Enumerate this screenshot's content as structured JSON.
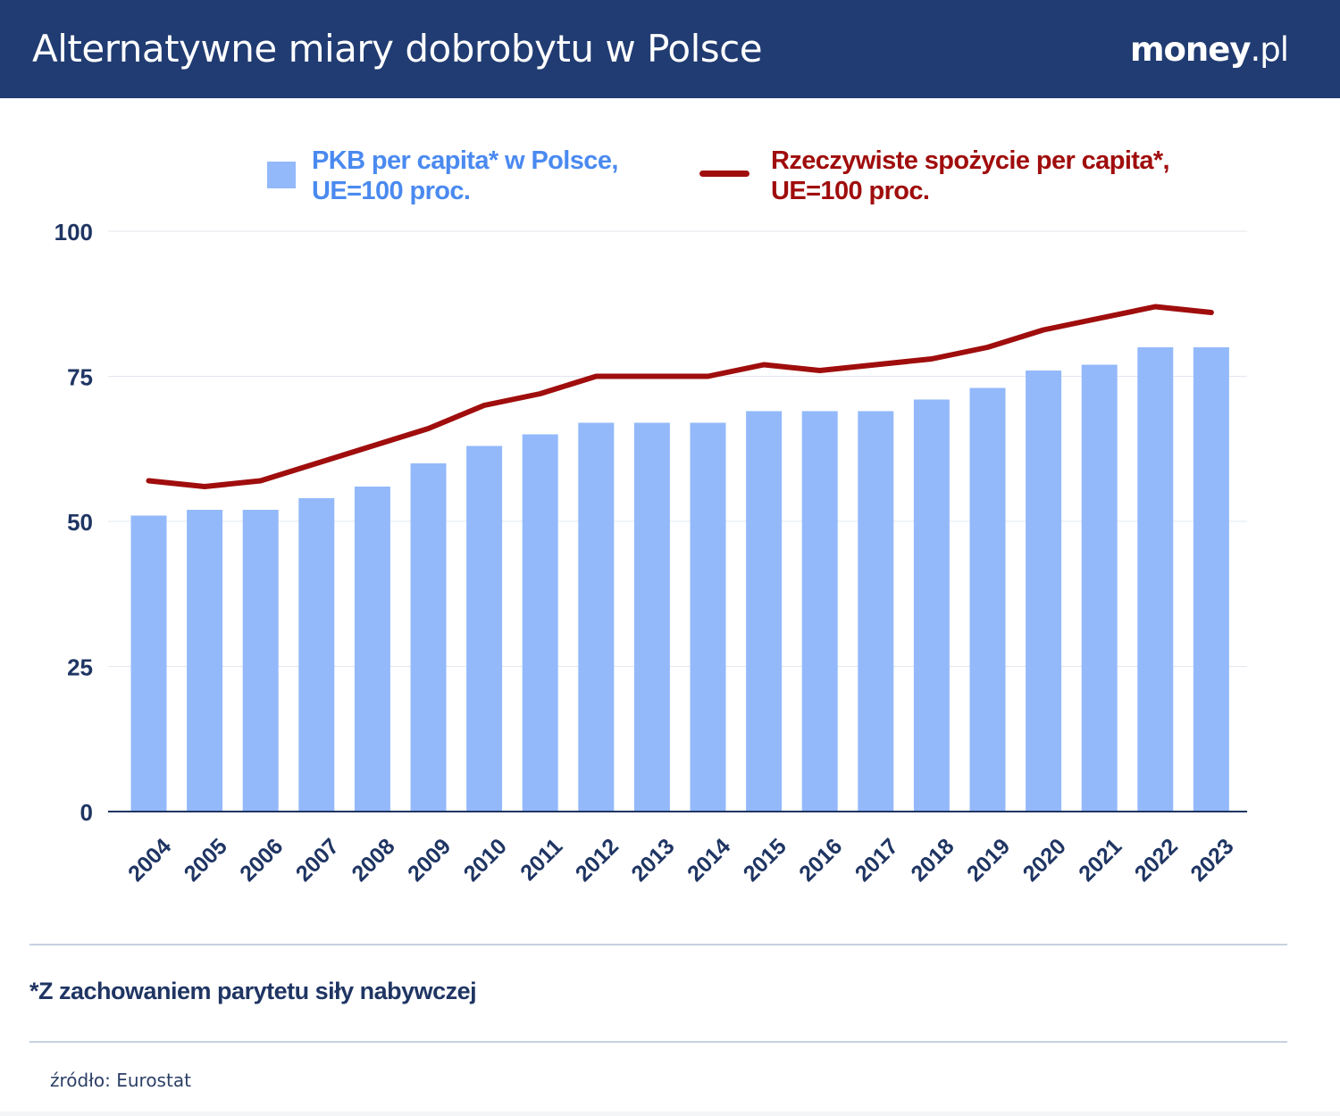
{
  "header": {
    "title": "Alternatywne miary dobrobytu w Polsce",
    "logo_bold": "money",
    "logo_light": ".pl"
  },
  "legend": {
    "bar_line1": "PKB per capita* w Polsce,",
    "bar_line2": "UE=100 proc.",
    "line_line1": "Rzeczywiste spożycie per capita*,",
    "line_line2": "UE=100 proc."
  },
  "footnote": "*Z zachowaniem parytetu siły nabywczej",
  "source": "źródło: Eurostat",
  "colors": {
    "header_bg": "#213c72",
    "bar": "#93b9fb",
    "line": "#a00d0d",
    "axis_text": "#1f3563"
  },
  "chart_data": {
    "type": "bar",
    "categories": [
      "2004",
      "2005",
      "2006",
      "2007",
      "2008",
      "2009",
      "2010",
      "2011",
      "2012",
      "2013",
      "2014",
      "2015",
      "2016",
      "2017",
      "2018",
      "2019",
      "2020",
      "2021",
      "2022",
      "2023"
    ],
    "series": [
      {
        "name": "PKB per capita* w Polsce, UE=100 proc.",
        "type": "bar",
        "values": [
          51,
          52,
          52,
          54,
          56,
          60,
          63,
          65,
          67,
          67,
          67,
          69,
          69,
          69,
          71,
          73,
          76,
          77,
          80,
          80
        ]
      },
      {
        "name": "Rzeczywiste spożycie per capita*, UE=100 proc.",
        "type": "line",
        "values": [
          57,
          56,
          57,
          60,
          63,
          66,
          70,
          72,
          75,
          75,
          75,
          77,
          76,
          77,
          78,
          80,
          83,
          85,
          87,
          86
        ]
      }
    ],
    "yticks": [
      0,
      25,
      50,
      75,
      100
    ],
    "ylim": [
      0,
      100
    ],
    "grid": true,
    "legend_position": "top",
    "xlabel": "",
    "ylabel": ""
  }
}
